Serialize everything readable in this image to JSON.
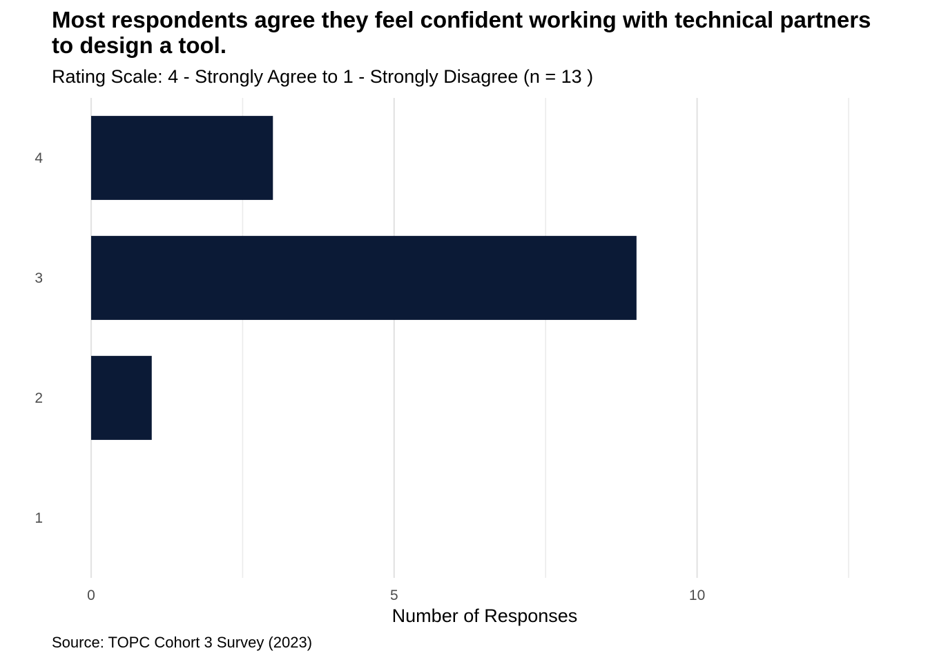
{
  "chart_data": {
    "type": "bar",
    "orientation": "horizontal",
    "title": "Most respondents agree they feel confident working with technical partners to design a tool.",
    "subtitle": "Rating Scale: 4 - Strongly Agree to 1 - Strongly Disagree (n = 13 )",
    "caption": "Source: TOPC Cohort 3 Survey (2023)",
    "xlabel": "Number of Responses",
    "ylabel": "",
    "categories": [
      "4",
      "3",
      "2",
      "1"
    ],
    "values": [
      3,
      9,
      1,
      0
    ],
    "xlim": [
      0,
      12.5
    ],
    "x_ticks": [
      0,
      5,
      10
    ],
    "x_tick_labels": [
      "0",
      "5",
      "10"
    ],
    "bar_color": "#0b1a36",
    "grid": true,
    "legend": "none"
  }
}
